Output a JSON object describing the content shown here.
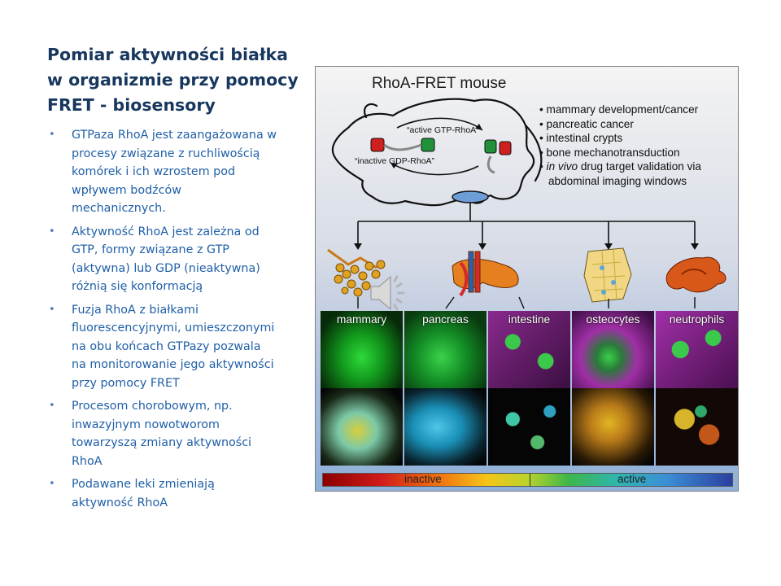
{
  "slide": {
    "title_lines": [
      "Pomiar aktywności białka",
      "w organizmie przy pomocy",
      "FRET - biosensory"
    ],
    "bullets": [
      [
        "GTPaza RhoA jest zaangażowana w",
        "procesy związane z ruchliwością",
        "komórek i ich wzrostem pod",
        "wpływem bodźców",
        "mechanicznych."
      ],
      [
        "Aktywność RhoA jest zależna od",
        "GTP, formy związane z GTP",
        "(aktywna) lub GDP (nieaktywna)",
        "różnią się konformacją"
      ],
      [
        "Fuzja RhoA z białkami",
        "fluorescencyjnymi, umieszczonymi",
        "na obu końcach GTPazy pozwala",
        "na monitorowanie jego aktywności",
        "przy pomocy FRET"
      ],
      [
        "Procesom chorobowym, np.",
        "inwazyjnym nowotworom",
        "towarzyszą zmiany aktywności",
        "RhoA"
      ],
      [
        "Podawane leki zmieniają",
        "aktywność RhoA"
      ]
    ],
    "bullet_glyph": "•"
  },
  "figure": {
    "title": "RhoA-FRET mouse",
    "label_active": "“active GTP-RhoA”",
    "label_inactive": "“inactive GDP-RhoA”",
    "applications": [
      {
        "prefix": "• ",
        "text": "mammary development/cancer"
      },
      {
        "prefix": "• ",
        "text": "pancreatic cancer"
      },
      {
        "prefix": "• ",
        "text": "intestinal crypts"
      },
      {
        "prefix": "• ",
        "text": "bone mechanotransduction"
      },
      {
        "prefix": "• ",
        "italic": "in vivo",
        "text": " drug target validation via"
      },
      {
        "prefix": "",
        "text": "abdominal imaging windows"
      }
    ],
    "panels": [
      {
        "label": "mammary",
        "top_color": "#128a1a",
        "bottom_color": "#c9c23a"
      },
      {
        "label": "pancreas",
        "top_color": "#0f6f22",
        "bottom_color": "#2aa6c9"
      },
      {
        "label": "intestine",
        "top_color": "#6a1e6b",
        "bottom_color": "#2fb08a"
      },
      {
        "label": "osteocytes",
        "top_color": "#8a2a8e",
        "bottom_color": "#d1a21c"
      },
      {
        "label": "neutrophils",
        "top_color": "#7a2a80",
        "bottom_color": "#c1741c"
      }
    ],
    "colorbar": {
      "left_label": "inactive",
      "right_label": "active"
    }
  },
  "icons": [
    "speaker-icon"
  ],
  "colors": {
    "title": "#17375e",
    "body": "#1f5fa7",
    "bullet": "#4f81bd"
  }
}
